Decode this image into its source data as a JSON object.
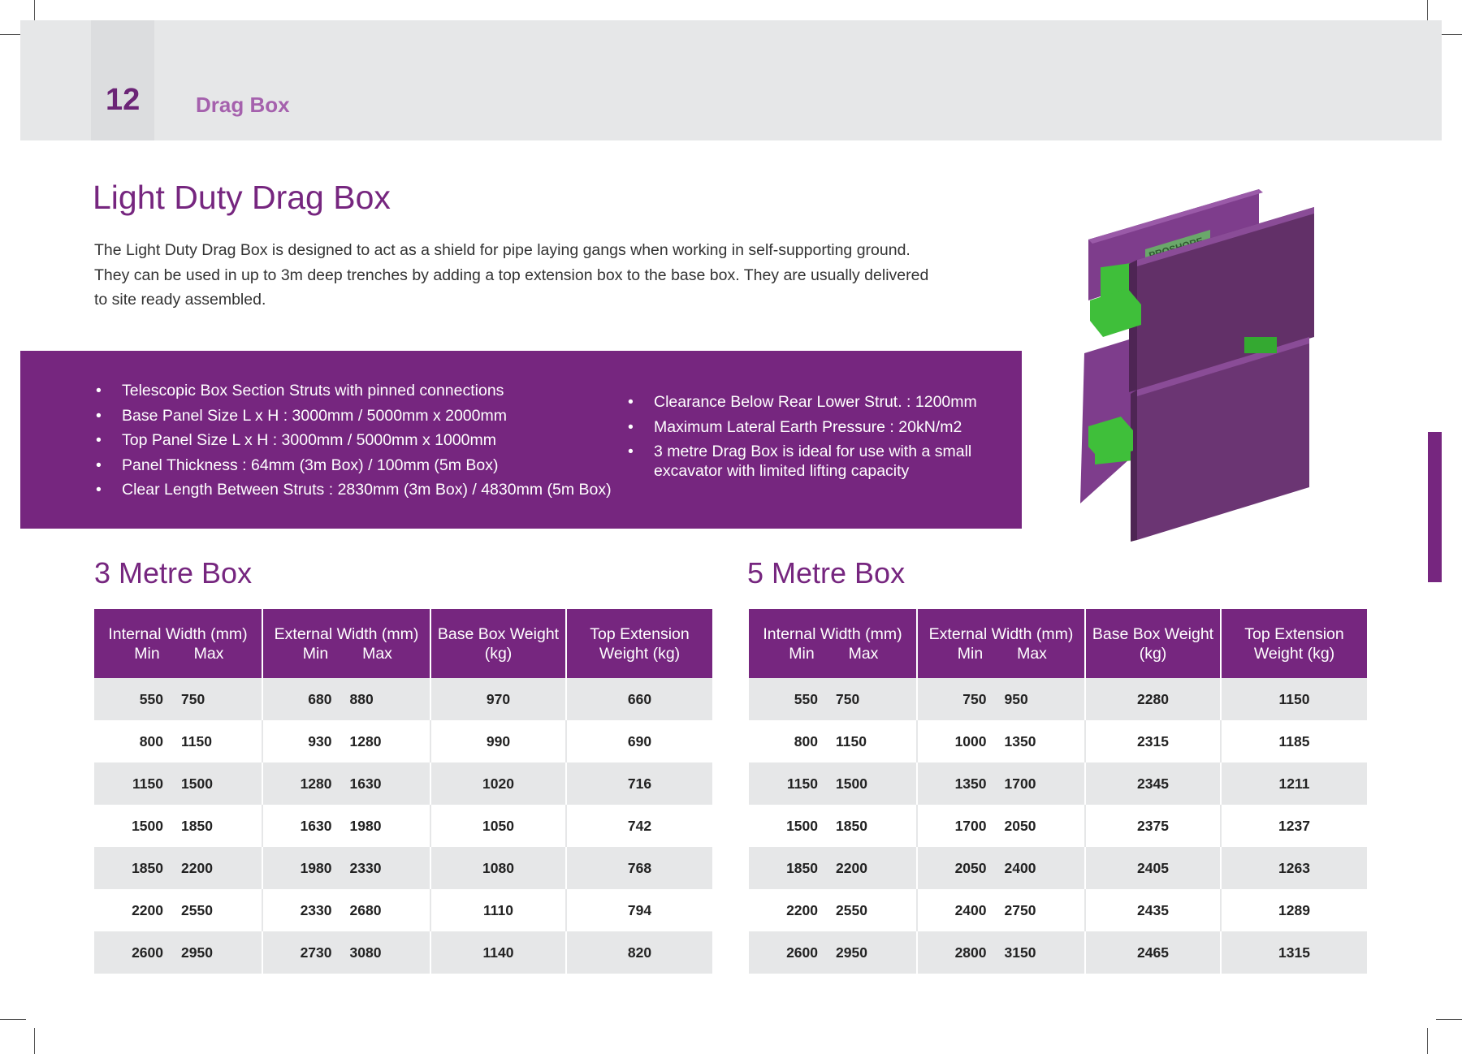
{
  "header": {
    "page_number": "12",
    "section": "Drag Box"
  },
  "title": "Light Duty Drag Box",
  "intro": [
    "The Light Duty Drag Box is designed to act as a shield for pipe laying gangs when working in self-supporting ground.",
    "They can be used in up to 3m deep trenches by adding a top extension box to the base box. They are usually delivered",
    "to site ready assembled."
  ],
  "features_left": [
    "Telescopic Box Section Struts with pinned connections",
    "Base Panel Size L x H : 3000mm / 5000mm x 2000mm",
    "Top Panel Size   L x H : 3000mm / 5000mm x 1000mm",
    "Panel Thickness : 64mm (3m Box)  / 100mm (5m Box)",
    "Clear Length Between Struts : 2830mm (3m Box) / 4830mm (5m Box)"
  ],
  "features_right": [
    "Clearance Below Rear Lower Strut. : 1200mm",
    "Maximum Lateral Earth Pressure : 20kN/m2",
    "3 metre Drag Box is ideal for use with a small excavator with limited lifting capacity"
  ],
  "product_image": {
    "label": "PROSHORE"
  },
  "colors": {
    "brand_purple": "#76267f",
    "light_purple": "#a561ad",
    "header_grey": "#e6e7e8",
    "strut_green": "#3fbf3a"
  },
  "headers": {
    "internal": "Internal Width (mm)",
    "external": "External Width (mm)",
    "min": "Min",
    "max": "Max",
    "base_l1": "Base Box Weight",
    "base_l2": "(kg)",
    "top_l1": "Top Extension",
    "top_l2": "Weight (kg)"
  },
  "box3": {
    "title": "3 Metre Box",
    "rows": [
      [
        "550",
        "750",
        "680",
        "880",
        "970",
        "660"
      ],
      [
        "800",
        "1150",
        "930",
        "1280",
        "990",
        "690"
      ],
      [
        "1150",
        "1500",
        "1280",
        "1630",
        "1020",
        "716"
      ],
      [
        "1500",
        "1850",
        "1630",
        "1980",
        "1050",
        "742"
      ],
      [
        "1850",
        "2200",
        "1980",
        "2330",
        "1080",
        "768"
      ],
      [
        "2200",
        "2550",
        "2330",
        "2680",
        "1110",
        "794"
      ],
      [
        "2600",
        "2950",
        "2730",
        "3080",
        "1140",
        "820"
      ]
    ]
  },
  "box5": {
    "title": "5 Metre Box",
    "rows": [
      [
        "550",
        "750",
        "750",
        "950",
        "2280",
        "1150"
      ],
      [
        "800",
        "1150",
        "1000",
        "1350",
        "2315",
        "1185"
      ],
      [
        "1150",
        "1500",
        "1350",
        "1700",
        "2345",
        "1211"
      ],
      [
        "1500",
        "1850",
        "1700",
        "2050",
        "2375",
        "1237"
      ],
      [
        "1850",
        "2200",
        "2050",
        "2400",
        "2405",
        "1263"
      ],
      [
        "2200",
        "2550",
        "2400",
        "2750",
        "2435",
        "1289"
      ],
      [
        "2600",
        "2950",
        "2800",
        "3150",
        "2465",
        "1315"
      ]
    ]
  }
}
